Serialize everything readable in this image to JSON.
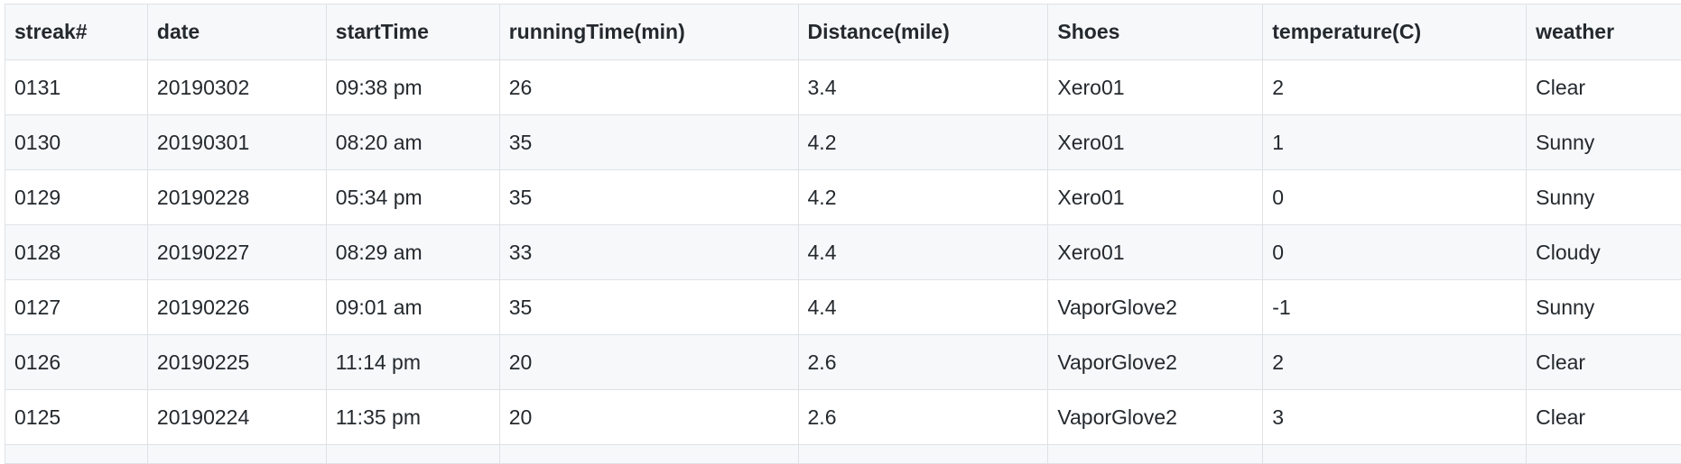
{
  "table": {
    "columns": [
      "streak#",
      "date",
      "startTime",
      "runningTime(min)",
      "Distance(mile)",
      "Shoes",
      "temperature(C)",
      "weather"
    ],
    "rows": [
      [
        "0131",
        "20190302",
        "09:38 pm",
        "26",
        "3.4",
        "Xero01",
        "2",
        "Clear"
      ],
      [
        "0130",
        "20190301",
        "08:20 am",
        "35",
        "4.2",
        "Xero01",
        "1",
        "Sunny"
      ],
      [
        "0129",
        "20190228",
        "05:34 pm",
        "35",
        "4.2",
        "Xero01",
        "0",
        "Sunny"
      ],
      [
        "0128",
        "20190227",
        "08:29 am",
        "33",
        "4.4",
        "Xero01",
        "0",
        "Cloudy"
      ],
      [
        "0127",
        "20190226",
        "09:01 am",
        "35",
        "4.4",
        "VaporGlove2",
        "-1",
        "Sunny"
      ],
      [
        "0126",
        "20190225",
        "11:14 pm",
        "20",
        "2.6",
        "VaporGlove2",
        "2",
        "Clear"
      ],
      [
        "0125",
        "20190224",
        "11:35 pm",
        "20",
        "2.6",
        "VaporGlove2",
        "3",
        "Clear"
      ]
    ]
  }
}
